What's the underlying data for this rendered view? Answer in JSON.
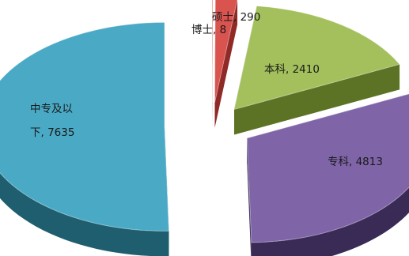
{
  "chart_data": {
    "type": "pie",
    "title": "",
    "style": "3d-exploded",
    "categories": [
      "博士",
      "硕士",
      "本科",
      "专科",
      "中专及以下"
    ],
    "values": [
      8,
      290,
      2410,
      4813,
      7635
    ],
    "colors": [
      "#e8534d",
      "#d9534f",
      "#a3c05c",
      "#8064a8",
      "#4aaac6"
    ],
    "side_colors": [
      "#9e2f2b",
      "#8f2a26",
      "#5c7326",
      "#3a2a56",
      "#1f5e6f"
    ],
    "data_labels": [
      {
        "name": "博士",
        "value": "8",
        "text": "博士, 8"
      },
      {
        "name": "硕士",
        "value": "290",
        "text": "硕士, 290"
      },
      {
        "name": "本科",
        "value": "2410",
        "text": "本科, 2410"
      },
      {
        "name": "专科",
        "value": "4813",
        "text": "专科, 4813"
      },
      {
        "name": "中专及以下",
        "value": "7635",
        "lines": [
          "中专及以",
          "下, 7635"
        ]
      }
    ],
    "legend": "none",
    "grid": false
  }
}
